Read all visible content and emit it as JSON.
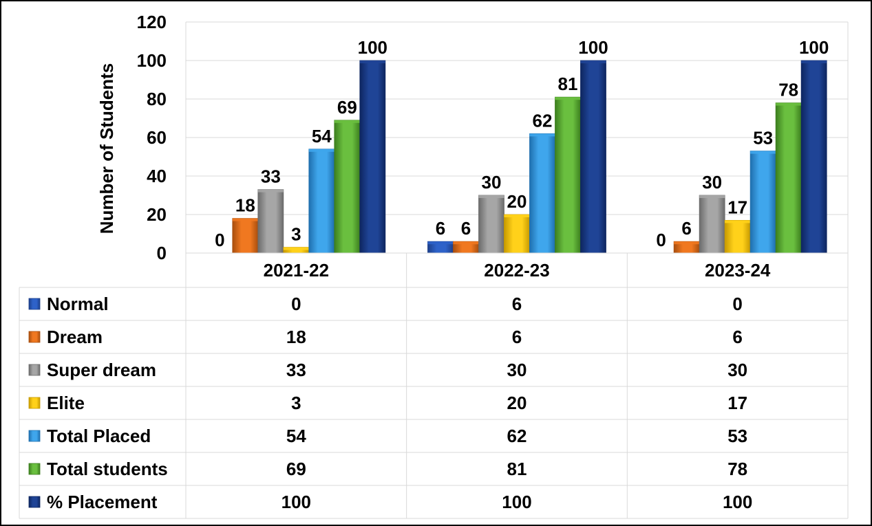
{
  "chart_data": {
    "type": "bar",
    "ylabel": "Number of Students",
    "ylim": [
      0,
      120
    ],
    "yticks": [
      "0",
      "20",
      "40",
      "60",
      "80",
      "100",
      "120"
    ],
    "grid": true,
    "legend": "data-table",
    "categories": [
      "2021-22",
      "2022-23",
      "2023-24"
    ],
    "series": [
      {
        "name": "Normal",
        "values": [
          0,
          6,
          0
        ],
        "color": "#2E62C9",
        "shade": "#1C3F8A"
      },
      {
        "name": "Dream",
        "values": [
          18,
          6,
          6
        ],
        "color": "#F07820",
        "shade": "#A84E0E"
      },
      {
        "name": "Super dream",
        "values": [
          33,
          30,
          30
        ],
        "color": "#A6A6A6",
        "shade": "#6B6B6B"
      },
      {
        "name": "Elite",
        "values": [
          3,
          20,
          17
        ],
        "color": "#FFD11A",
        "shade": "#C79A00"
      },
      {
        "name": "Total Placed",
        "values": [
          54,
          62,
          53
        ],
        "color": "#3FA6EC",
        "shade": "#1F6FAE"
      },
      {
        "name": "Total students",
        "values": [
          69,
          81,
          78
        ],
        "color": "#6ABF3F",
        "shade": "#3C7E1E"
      },
      {
        "name": "% Placement",
        "values": [
          100,
          100,
          100
        ],
        "color": "#1F4496",
        "shade": "#0E2660"
      }
    ]
  }
}
